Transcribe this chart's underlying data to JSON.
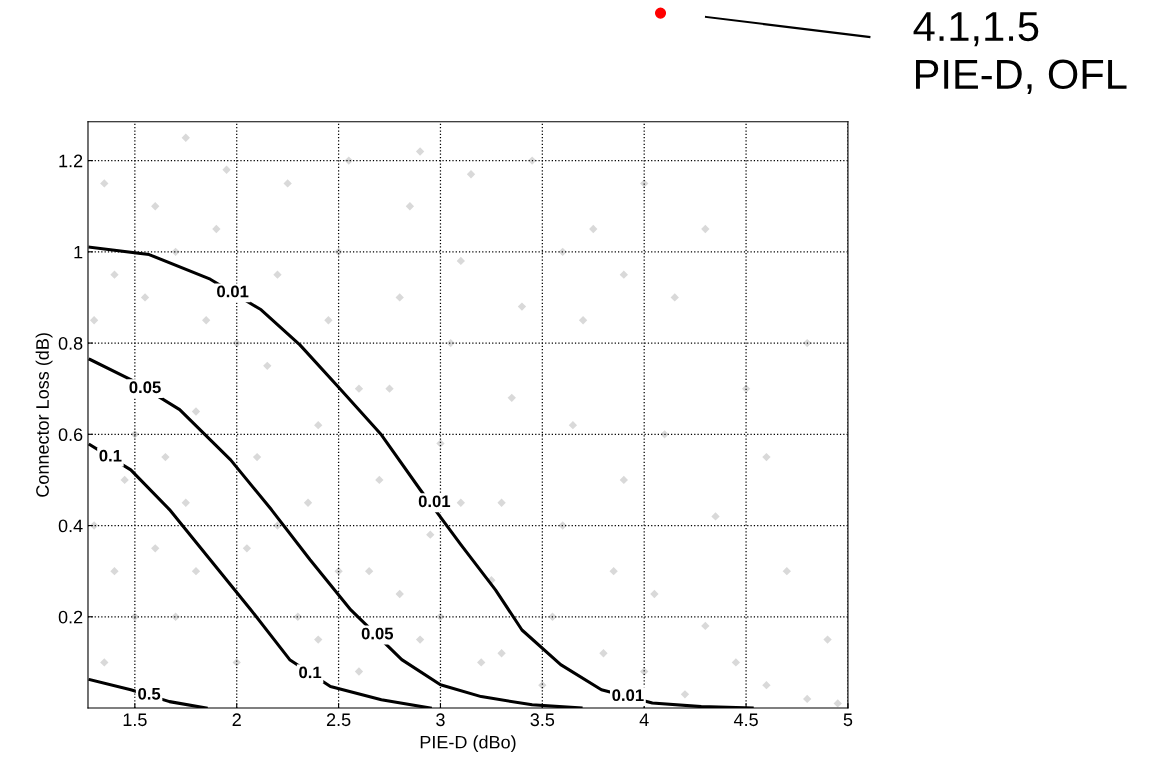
{
  "chart_data": {
    "type": "scatter",
    "xlabel": "PIE-D (dBo)",
    "ylabel": "Connector Loss (dB)",
    "xlim": [
      1.27,
      5.0
    ],
    "ylim": [
      0,
      1.285
    ],
    "xticks": [
      1.5,
      2,
      2.5,
      3,
      3.5,
      4,
      4.5,
      5
    ],
    "yticks": [
      0.2,
      0.4,
      0.6,
      0.8,
      1,
      1.2
    ],
    "grid": true,
    "series": [
      {
        "color": "#d9d9d9",
        "marker": "diamond",
        "x": [
          1.35,
          1.4,
          1.45,
          1.5,
          1.55,
          1.6,
          1.35,
          1.7,
          1.75,
          1.8,
          1.85,
          1.9,
          1.95,
          2.0,
          2.05,
          2.1,
          2.15,
          2.2,
          2.25,
          2.3,
          2.35,
          2.4,
          2.45,
          2.5,
          2.55,
          2.6,
          2.65,
          2.7,
          2.75,
          2.8,
          2.85,
          2.9,
          2.95,
          3.0,
          3.05,
          3.1,
          3.15,
          3.2,
          3.25,
          3.3,
          3.35,
          3.4,
          3.5,
          3.55,
          3.6,
          3.65,
          3.7,
          3.75,
          3.8,
          3.85,
          3.9,
          4.0,
          4.05,
          4.1,
          4.15,
          4.2,
          4.3,
          4.35,
          4.45,
          4.5,
          4.6,
          4.7,
          4.8,
          4.9,
          4.95,
          1.3,
          1.3,
          1.5,
          1.65,
          1.6,
          2.0,
          1.8,
          1.4,
          1.7,
          2.2,
          2.5,
          2.4,
          2.8,
          3.1,
          3.0,
          2.6,
          3.3,
          3.45,
          4.0,
          3.9,
          4.6,
          4.8,
          2.9,
          1.75,
          3.6,
          4.3
        ],
        "values": [
          0.1,
          0.3,
          0.5,
          0.6,
          0.9,
          1.1,
          1.15,
          0.2,
          0.45,
          0.65,
          0.85,
          1.05,
          1.18,
          0.1,
          0.35,
          0.55,
          0.75,
          0.95,
          1.15,
          0.2,
          0.45,
          0.62,
          0.85,
          1.0,
          1.2,
          0.08,
          0.3,
          0.5,
          0.7,
          0.9,
          1.1,
          0.15,
          0.38,
          0.58,
          0.8,
          0.98,
          1.17,
          0.1,
          0.28,
          0.45,
          0.68,
          0.88,
          0.05,
          0.2,
          0.4,
          0.62,
          0.85,
          1.05,
          0.12,
          0.3,
          0.5,
          0.08,
          0.25,
          0.6,
          0.9,
          0.03,
          0.18,
          0.42,
          0.1,
          0.7,
          0.05,
          0.3,
          0.02,
          0.15,
          0.01,
          0.4,
          0.85,
          0.2,
          0.55,
          0.35,
          0.8,
          0.3,
          0.95,
          1.0,
          0.4,
          0.3,
          0.15,
          0.25,
          0.45,
          0.2,
          0.7,
          0.12,
          1.2,
          1.15,
          0.95,
          0.55,
          0.8,
          1.22,
          1.25,
          1.0,
          1.05
        ]
      },
      {
        "type": "line",
        "color": "#000000",
        "x": [
          1.28,
          1.57,
          1.87,
          2.12,
          2.31,
          2.51,
          2.71,
          2.9,
          3.1,
          3.27,
          3.4,
          3.59,
          3.79,
          4.04,
          4.28,
          4.53
        ],
        "values": [
          1.01,
          0.994,
          0.94,
          0.873,
          0.796,
          0.698,
          0.599,
          0.479,
          0.358,
          0.259,
          0.171,
          0.095,
          0.04,
          0.011,
          0.003,
          0.0
        ]
      },
      {
        "type": "line",
        "color": "#000000",
        "x": [
          1.28,
          1.48,
          1.72,
          1.97,
          2.17,
          2.36,
          2.56,
          2.81,
          3.0,
          3.2,
          3.45,
          3.69
        ],
        "values": [
          0.764,
          0.72,
          0.654,
          0.544,
          0.435,
          0.325,
          0.215,
          0.106,
          0.051,
          0.025,
          0.007,
          0.0
        ]
      },
      {
        "type": "line",
        "color": "#000000",
        "x": [
          1.28,
          1.48,
          1.67,
          1.87,
          2.07,
          2.26,
          2.46,
          2.71,
          2.95
        ],
        "values": [
          0.577,
          0.522,
          0.435,
          0.325,
          0.215,
          0.106,
          0.047,
          0.018,
          0.0
        ]
      },
      {
        "type": "line",
        "color": "#000000",
        "x": [
          1.28,
          1.48,
          1.67,
          1.85
        ],
        "values": [
          0.062,
          0.04,
          0.014,
          0.0
        ]
      }
    ],
    "annotations": [
      {
        "text": "0.01",
        "x": 1.98,
        "y": 0.91
      },
      {
        "text": "0.01",
        "x": 2.97,
        "y": 0.45
      },
      {
        "text": "0.01",
        "x": 3.92,
        "y": 0.025
      },
      {
        "text": "0.05",
        "x": 1.55,
        "y": 0.7
      },
      {
        "text": "0.05",
        "x": 2.69,
        "y": 0.16
      },
      {
        "text": "0.1",
        "x": 1.38,
        "y": 0.55
      },
      {
        "text": "0.1",
        "x": 2.36,
        "y": 0.075
      },
      {
        "text": "0.5",
        "x": 1.57,
        "y": 0.028
      },
      "4.1,1.5\nPIE-D, OFL"
    ]
  }
}
